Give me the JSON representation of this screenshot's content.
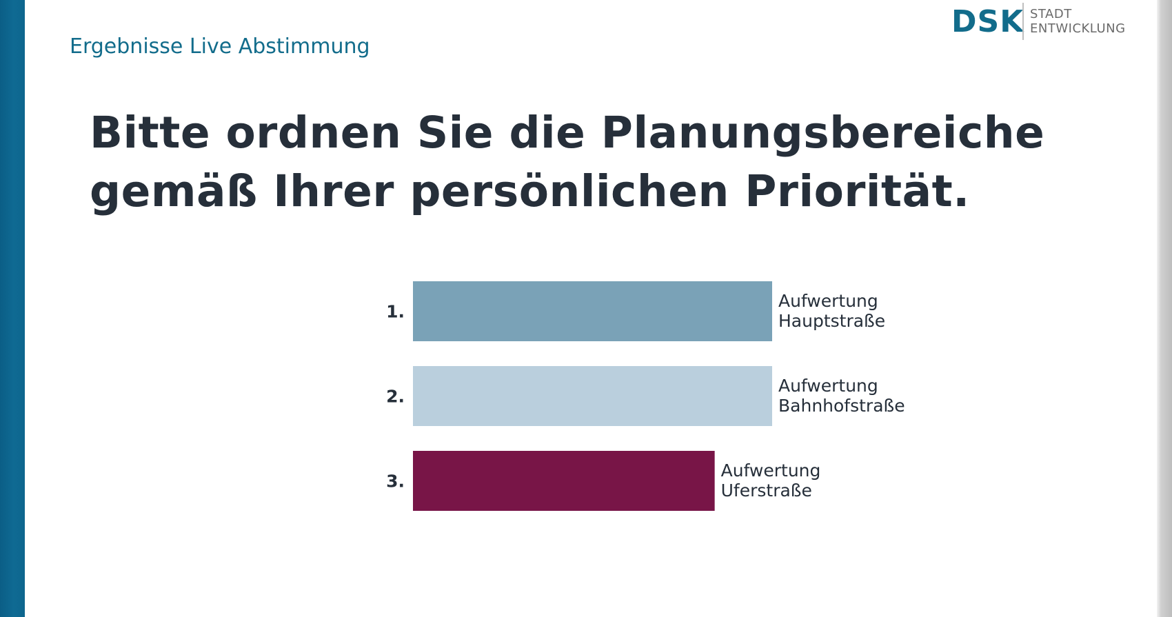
{
  "header": {
    "section_title": "Ergebnisse Live Abstimmung",
    "logo": {
      "mark": "DSK",
      "line1": "STADT",
      "line2": "ENTWICKLUNG"
    }
  },
  "question": {
    "line1": "Bitte ordnen Sie die Planungsbereiche",
    "line2": "gemäß Ihrer persönlichen Priorität."
  },
  "chart_data": {
    "type": "bar",
    "orientation": "horizontal",
    "categories": [
      "Aufwertung Hauptstraße",
      "Aufwertung Bahnhofstraße",
      "Aufwertung Uferstraße"
    ],
    "ranks": [
      "1.",
      "2.",
      "3."
    ],
    "label_lines": [
      [
        "Aufwertung",
        "Hauptstraße"
      ],
      [
        "Aufwertung",
        "Bahnhofstraße"
      ],
      [
        "Aufwertung",
        "Uferstraße"
      ]
    ],
    "values": [
      1.0,
      1.0,
      0.84
    ],
    "colors": [
      "#7aa2b7",
      "#bacfdd",
      "#781547"
    ],
    "title": "",
    "xlabel": "",
    "ylabel": "",
    "xlim": [
      0,
      1
    ]
  },
  "colors": {
    "accent": "#126c8b",
    "question_text": "#262f3a",
    "left_bar": "#0f6a93"
  }
}
